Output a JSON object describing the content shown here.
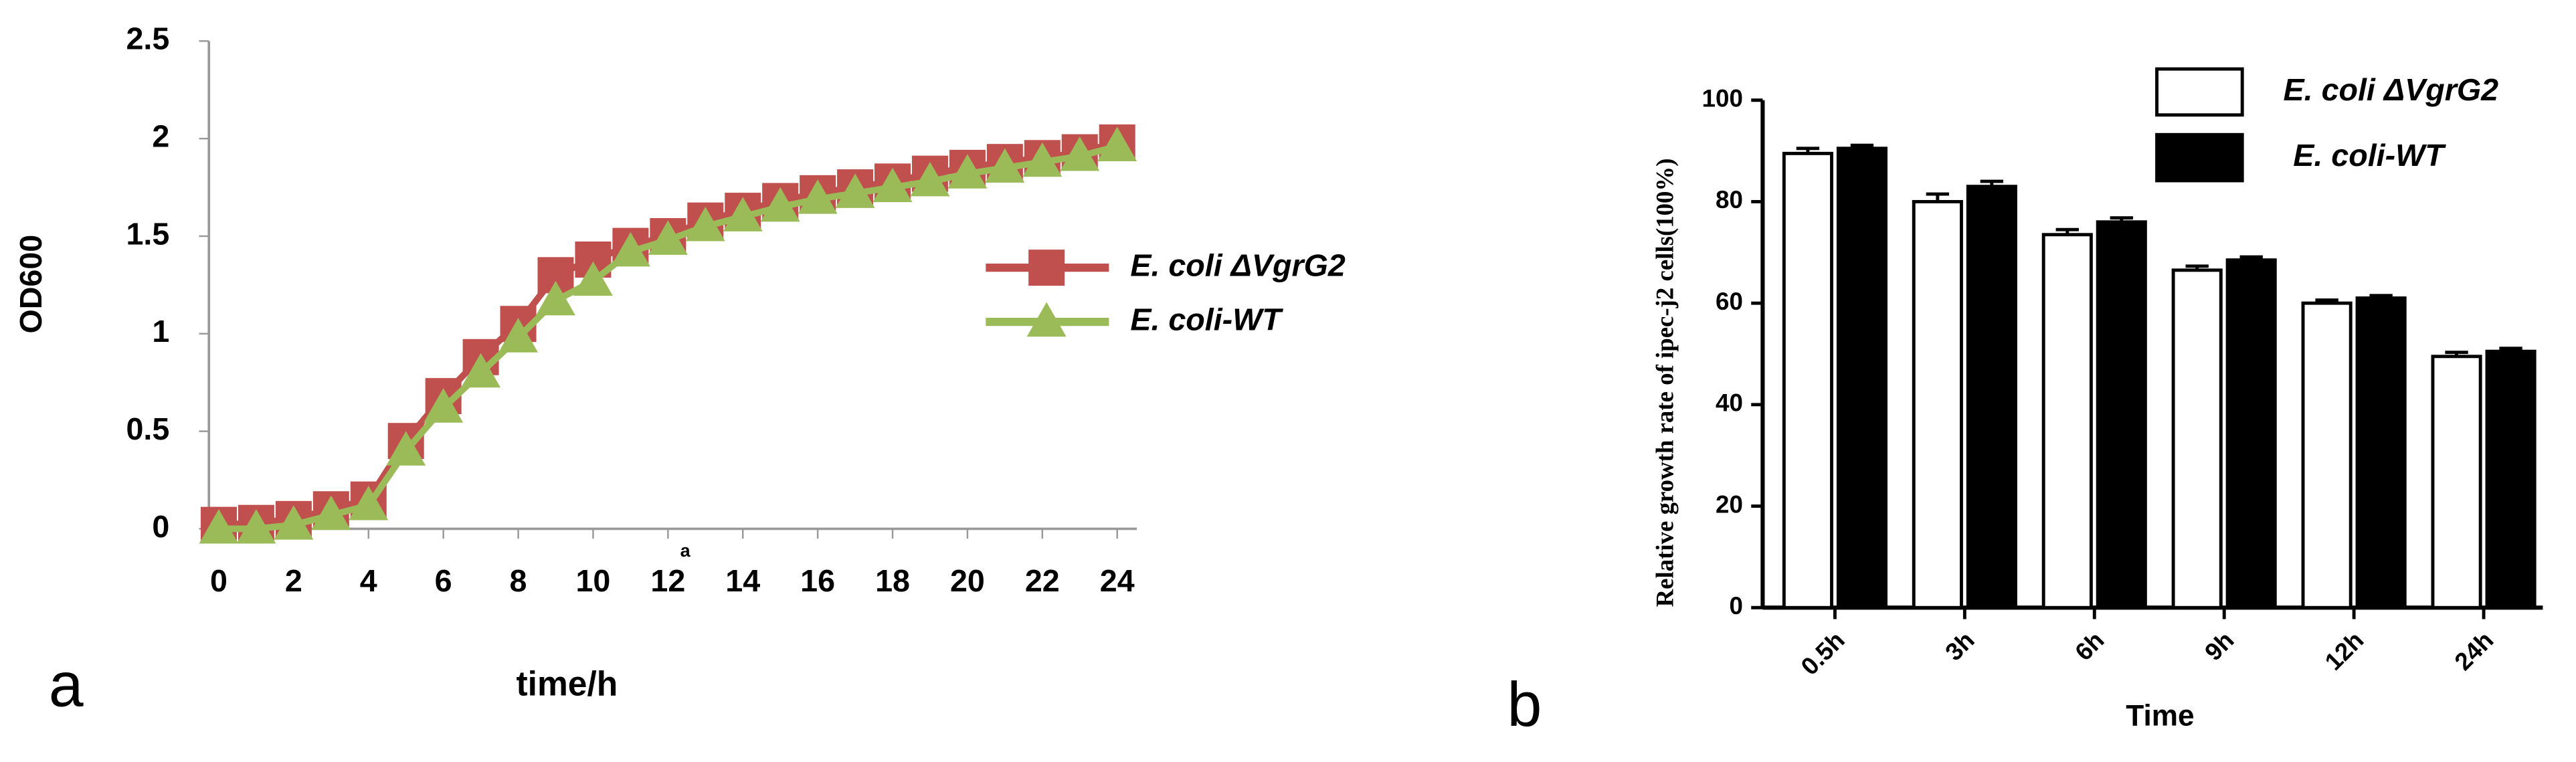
{
  "chart_data": [
    {
      "type": "line",
      "panel_label": "a",
      "x_label": "time/h",
      "y_label": "OD600",
      "annotation": "a",
      "x": [
        0,
        1,
        2,
        3,
        4,
        5,
        6,
        7,
        8,
        9,
        10,
        11,
        12,
        13,
        14,
        15,
        16,
        17,
        18,
        19,
        20,
        21,
        22,
        23,
        24
      ],
      "series": [
        {
          "name": "E. coli ΔVgrG2",
          "color": "#c0504d",
          "marker": "square",
          "values": [
            0.02,
            0.03,
            0.05,
            0.1,
            0.15,
            0.45,
            0.68,
            0.88,
            1.05,
            1.3,
            1.38,
            1.45,
            1.5,
            1.58,
            1.63,
            1.68,
            1.72,
            1.75,
            1.78,
            1.82,
            1.85,
            1.88,
            1.9,
            1.93,
            1.98
          ]
        },
        {
          "name": "E. coli-WT",
          "color": "#9bbb59",
          "marker": "triangle",
          "values": [
            0,
            0,
            0.02,
            0.07,
            0.12,
            0.4,
            0.62,
            0.8,
            0.98,
            1.17,
            1.27,
            1.42,
            1.48,
            1.55,
            1.6,
            1.65,
            1.69,
            1.72,
            1.75,
            1.78,
            1.82,
            1.85,
            1.88,
            1.91,
            1.96
          ]
        }
      ],
      "xlim": [
        0,
        24
      ],
      "xticks": [
        0,
        2,
        4,
        6,
        8,
        10,
        12,
        14,
        16,
        18,
        20,
        22,
        24
      ],
      "ylim": [
        0,
        2.5
      ],
      "yticks": [
        0,
        0.5,
        1,
        1.5,
        2,
        2.5
      ]
    },
    {
      "type": "bar",
      "panel_label": "b",
      "x_label": "Time",
      "y_label": "Relative growth rate of ipec-j2 cells(100%)",
      "categories": [
        "0.5h",
        "3h",
        "6h",
        "9h",
        "12h",
        "24h"
      ],
      "series": [
        {
          "name": "E. coli ΔVgrG2",
          "color": "#ffffff",
          "values": [
            89.5,
            80,
            73.5,
            66.5,
            60,
            49.5
          ],
          "errors": [
            1,
            1.5,
            1,
            0.8,
            0.6,
            0.8
          ]
        },
        {
          "name": "E. coli-WT",
          "color": "#000000",
          "values": [
            90.5,
            83,
            76,
            68.5,
            61,
            50.5
          ],
          "errors": [
            0.6,
            1,
            0.8,
            0.6,
            0.5,
            0.6
          ]
        }
      ],
      "ylim": [
        0,
        100
      ],
      "yticks": [
        0,
        20,
        40,
        60,
        80,
        100
      ]
    }
  ]
}
